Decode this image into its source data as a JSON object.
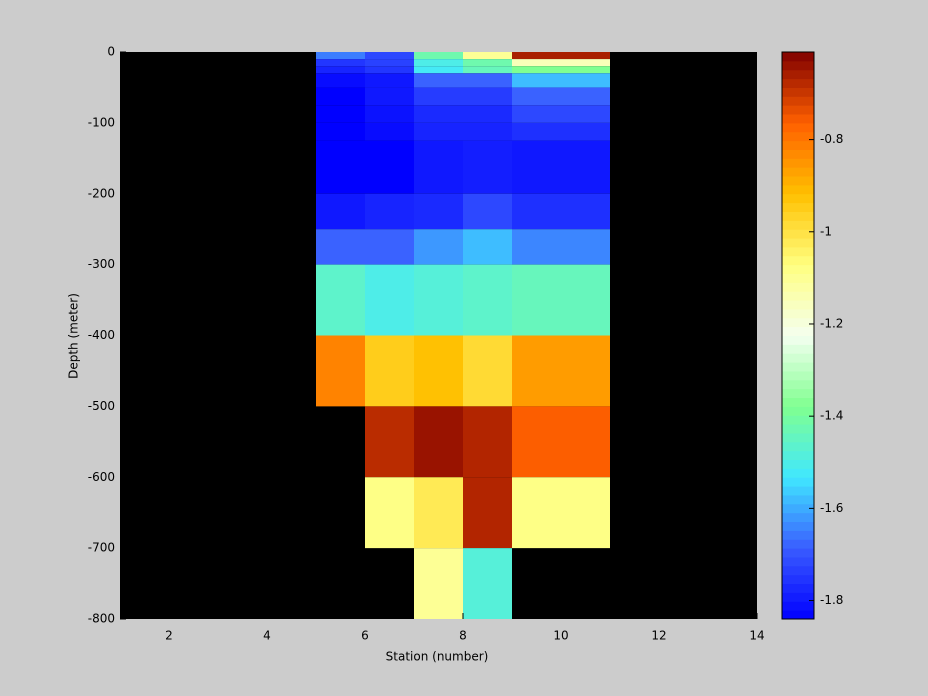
{
  "chart_data": {
    "type": "heatmap",
    "xlabel": "Station (number)",
    "ylabel": "Depth (meter)",
    "xlim": [
      1,
      14
    ],
    "xticks": [
      2,
      4,
      6,
      8,
      10,
      12,
      14
    ],
    "ylim": [
      -800,
      0
    ],
    "yticks": [
      0,
      -100,
      -200,
      -300,
      -400,
      -500,
      -600,
      -700,
      -800
    ],
    "xedges": [
      5,
      6,
      7,
      8,
      9,
      11
    ],
    "yedges": [
      0,
      -10,
      -20,
      -30,
      -50,
      -75,
      -100,
      -125,
      -200,
      -250,
      -300,
      -400,
      -500,
      -600,
      -700,
      -800
    ],
    "values": [
      [
        -1.65,
        -1.72,
        -1.42,
        -1.1,
        -0.66
      ],
      [
        -1.75,
        -1.73,
        -1.5,
        -1.42,
        -1.15
      ],
      [
        -1.78,
        -1.75,
        -1.52,
        -1.44,
        -1.38
      ],
      [
        -1.82,
        -1.8,
        -1.68,
        -1.68,
        -1.58
      ],
      [
        -1.84,
        -1.8,
        -1.74,
        -1.74,
        -1.68
      ],
      [
        -1.84,
        -1.81,
        -1.77,
        -1.77,
        -1.72
      ],
      [
        -1.84,
        -1.82,
        -1.78,
        -1.78,
        -1.76
      ],
      [
        -1.84,
        -1.84,
        -1.8,
        -1.79,
        -1.8
      ],
      [
        -1.8,
        -1.78,
        -1.77,
        -1.72,
        -1.76
      ],
      [
        -1.68,
        -1.68,
        -1.62,
        -1.58,
        -1.64
      ],
      [
        -1.46,
        -1.5,
        -1.48,
        -1.46,
        -1.44
      ],
      [
        -0.82,
        -0.95,
        -0.92,
        -0.98,
        -0.86
      ],
      [
        null,
        -0.68,
        -0.64,
        -0.67,
        -0.76
      ],
      [
        null,
        -1.08,
        -1.02,
        -0.67,
        -1.08
      ],
      [
        null,
        null,
        -1.1,
        -1.48,
        null
      ]
    ],
    "background": "#000000",
    "clim": [
      -1.84,
      -0.61
    ],
    "cticks": [
      -1.8,
      -1.6,
      -1.4,
      -1.2,
      -1,
      -0.8
    ],
    "colormap": [
      "#0000ff",
      "#3a5cff",
      "#40e8ff",
      "#80ff90",
      "#f4fff0",
      "#ffff80",
      "#ffc000",
      "#ff6000",
      "#800000"
    ]
  }
}
